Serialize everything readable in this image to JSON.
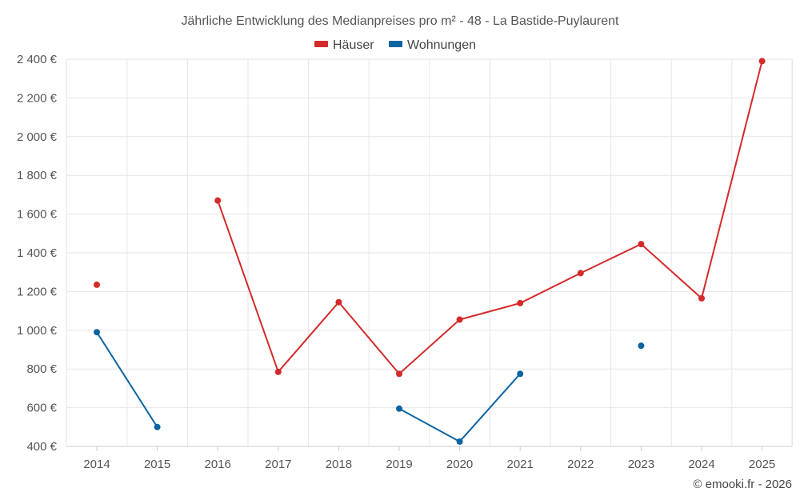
{
  "chart_data": {
    "type": "line",
    "title": "Jährliche Entwicklung des Medianpreises pro m² - 48 - La Bastide-Puylaurent",
    "categories": [
      "2014",
      "2015",
      "2016",
      "2017",
      "2018",
      "2019",
      "2020",
      "2021",
      "2022",
      "2023",
      "2024",
      "2025"
    ],
    "ylim": [
      400,
      2400
    ],
    "yticks": [
      400,
      600,
      800,
      1000,
      1200,
      1400,
      1600,
      1800,
      2000,
      2200,
      2400
    ],
    "ytick_labels": [
      "400 €",
      "600 €",
      "800 €",
      "1 000 €",
      "1 200 €",
      "1 400 €",
      "1 600 €",
      "1 800 €",
      "2 000 €",
      "2 200 €",
      "2 400 €"
    ],
    "grid": true,
    "legend_position": "top-center",
    "series": [
      {
        "name": "Häuser",
        "color": "#d42a2a",
        "values": [
          1235,
          null,
          1670,
          785,
          1145,
          775,
          1055,
          1140,
          1295,
          1445,
          1165,
          2390
        ]
      },
      {
        "name": "Wohnungen",
        "color": "#0a64a0",
        "values": [
          990,
          500,
          null,
          null,
          null,
          595,
          425,
          775,
          null,
          920,
          null,
          null
        ]
      }
    ]
  },
  "credit": "© emooki.fr - 2026"
}
